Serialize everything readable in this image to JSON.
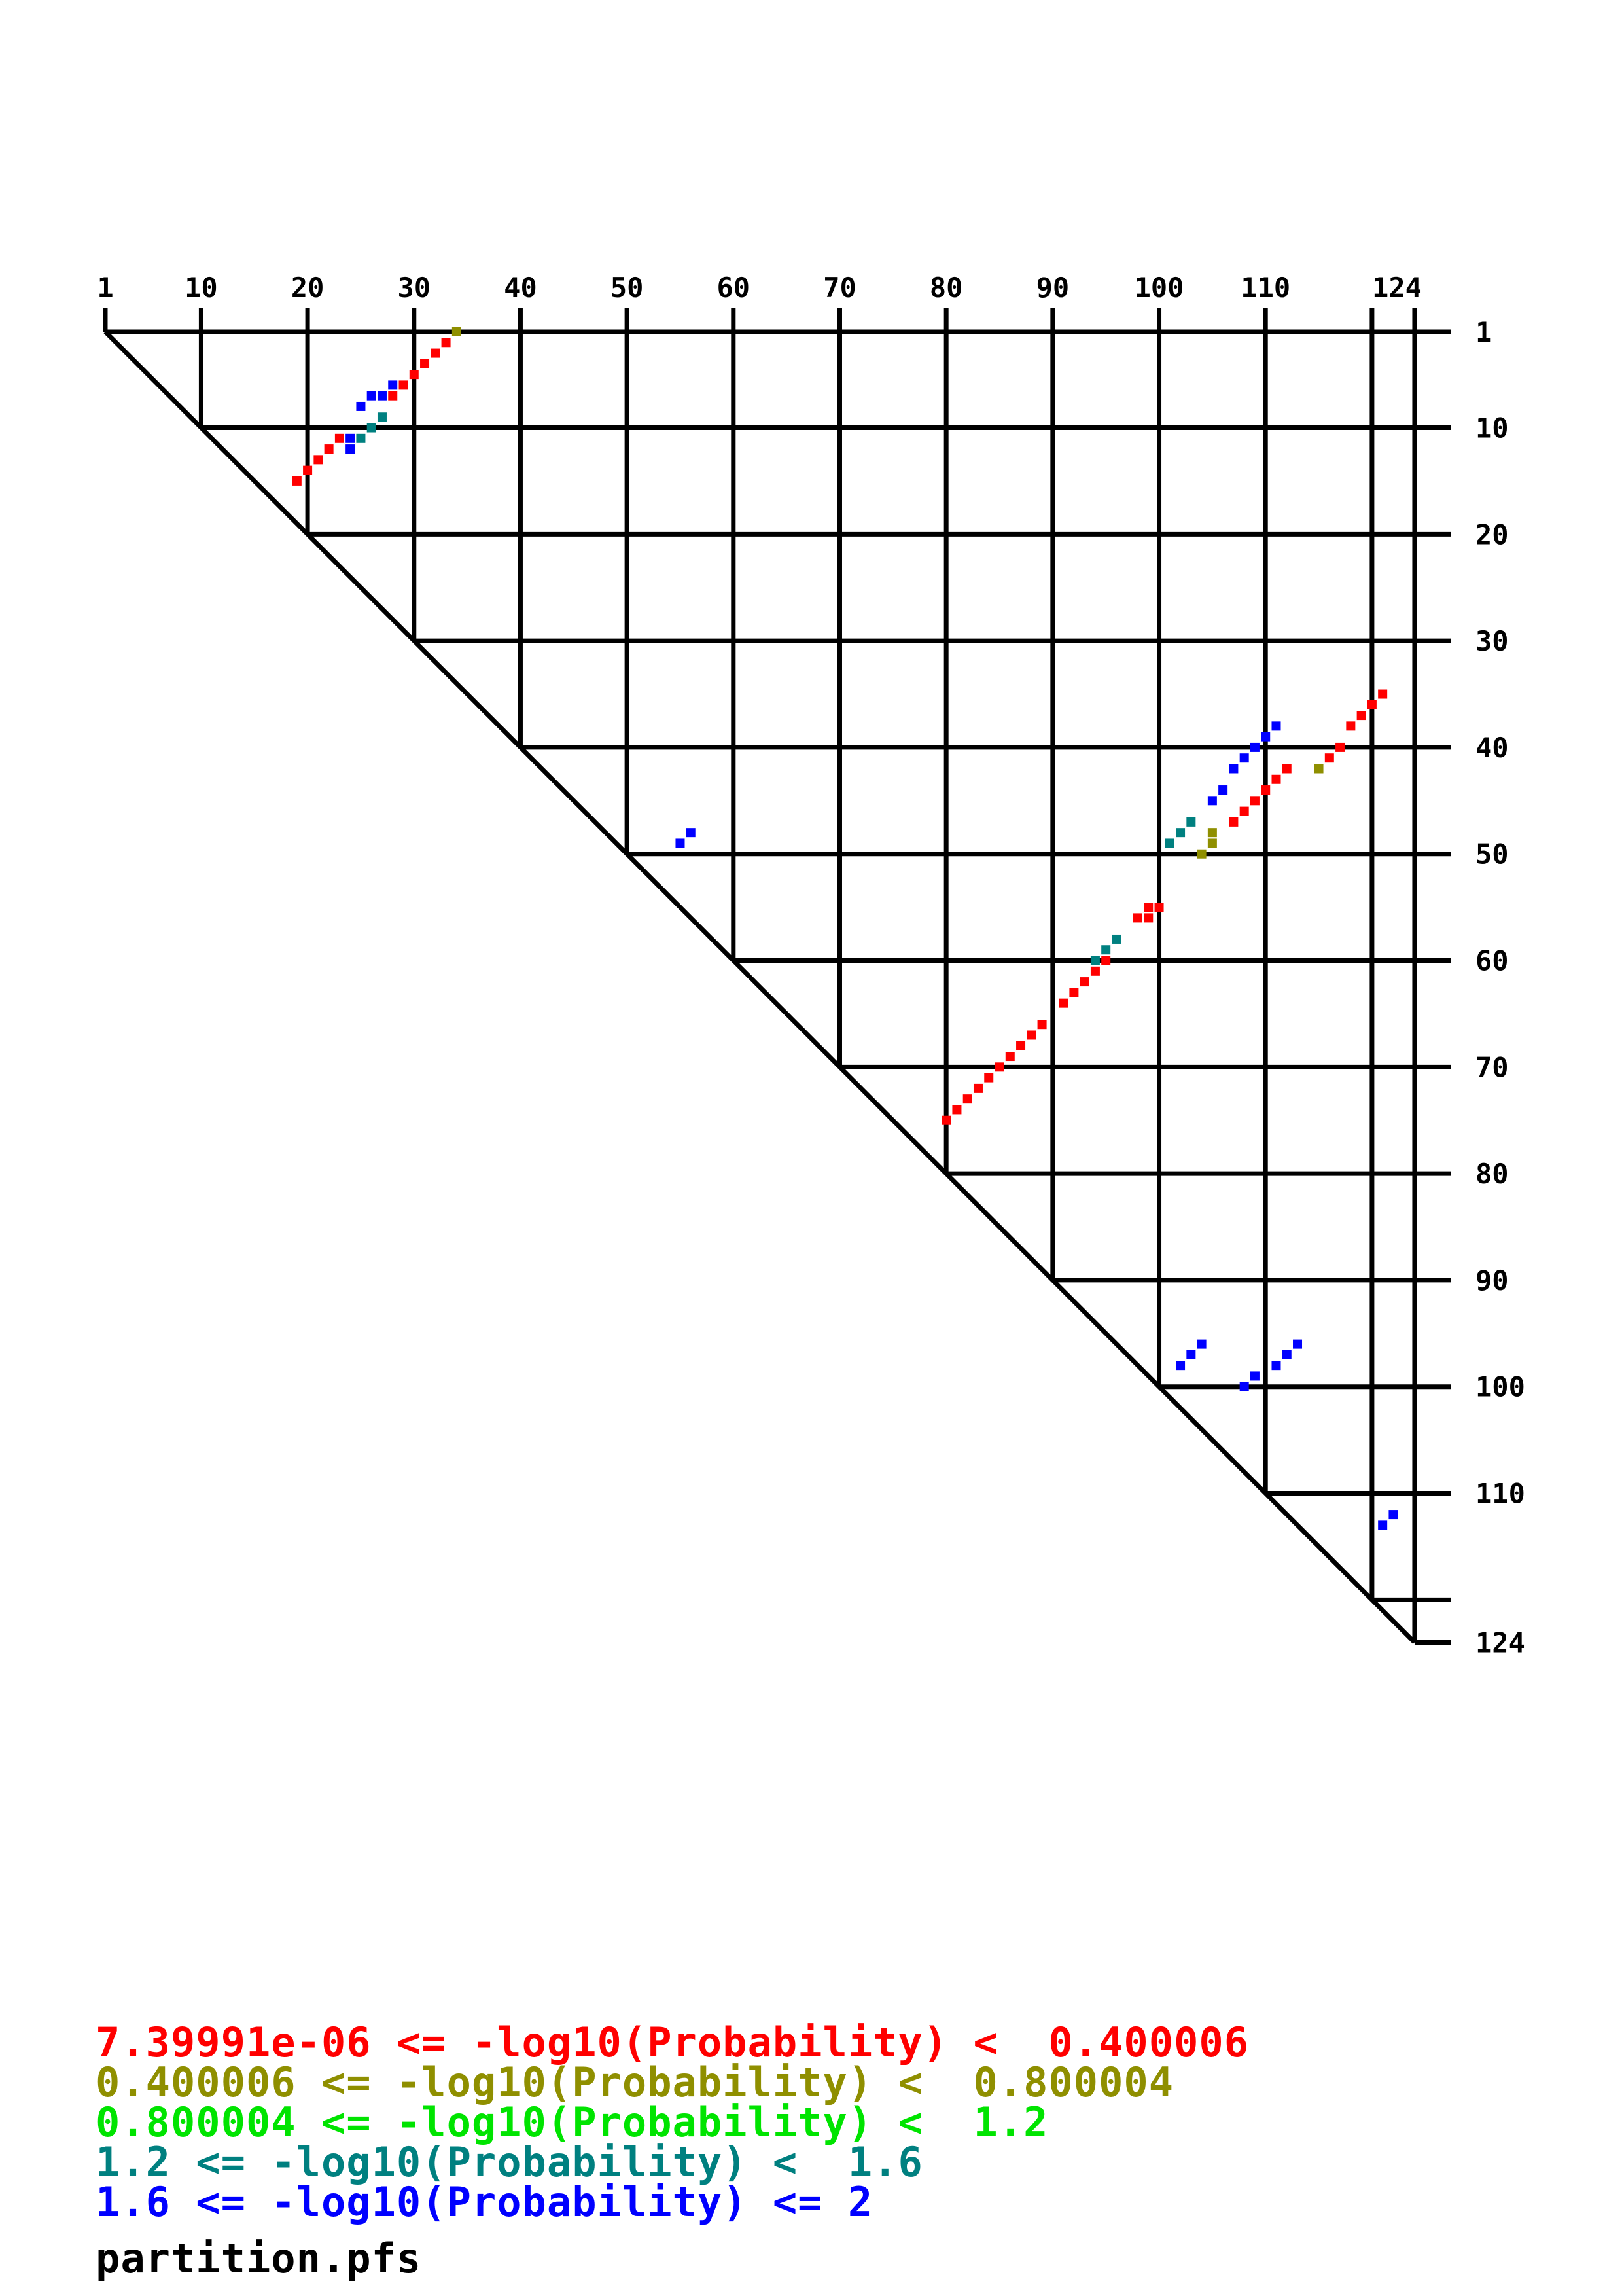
{
  "page": {
    "background": "#ffffff"
  },
  "plot": {
    "axis": {
      "range": [
        1,
        124
      ],
      "gridlines": [
        10,
        20,
        30,
        40,
        50,
        60,
        70,
        80,
        90,
        100,
        110,
        120
      ],
      "top_ticks": [
        1,
        10,
        20,
        30,
        40,
        50,
        60,
        70,
        80,
        90,
        100,
        110,
        120,
        124
      ],
      "top_labels": [
        {
          "v": 1,
          "t": "1"
        },
        {
          "v": 10,
          "t": "10"
        },
        {
          "v": 20,
          "t": "20"
        },
        {
          "v": 30,
          "t": "30"
        },
        {
          "v": 40,
          "t": "40"
        },
        {
          "v": 50,
          "t": "50"
        },
        {
          "v": 60,
          "t": "60"
        },
        {
          "v": 70,
          "t": "70"
        },
        {
          "v": 80,
          "t": "80"
        },
        {
          "v": 90,
          "t": "90"
        },
        {
          "v": 100,
          "t": "100"
        },
        {
          "v": 110,
          "t": "110"
        },
        {
          "v": 124,
          "t": "124"
        }
      ],
      "right_labels": [
        {
          "v": 1,
          "t": "1"
        },
        {
          "v": 10,
          "t": "10"
        },
        {
          "v": 20,
          "t": "20"
        },
        {
          "v": 30,
          "t": "30"
        },
        {
          "v": 40,
          "t": "40"
        },
        {
          "v": 50,
          "t": "50"
        },
        {
          "v": 60,
          "t": "60"
        },
        {
          "v": 70,
          "t": "70"
        },
        {
          "v": 80,
          "t": "80"
        },
        {
          "v": 90,
          "t": "90"
        },
        {
          "v": 100,
          "t": "100"
        },
        {
          "v": 110,
          "t": "110"
        },
        {
          "v": 124,
          "t": "124"
        }
      ]
    }
  },
  "chart_data": {
    "type": "scatter",
    "plot_kind": "rna-base-pair-probability-dot-plot",
    "title": "",
    "xlabel": "",
    "ylabel": "",
    "x_range": [
      1,
      124
    ],
    "y_range": [
      1,
      124
    ],
    "grid": true,
    "source_label": "partition.pfs",
    "series": [
      {
        "name": "7.39991e-06 <= -log10(Probability) < 0.400006",
        "color": "#ff0000",
        "points": [
          [
            33,
            2
          ],
          [
            32,
            3
          ],
          [
            31,
            4
          ],
          [
            30,
            5
          ],
          [
            29,
            6
          ],
          [
            28,
            7
          ],
          [
            23,
            11
          ],
          [
            22,
            12
          ],
          [
            21,
            13
          ],
          [
            20,
            14
          ],
          [
            19,
            15
          ],
          [
            121,
            35
          ],
          [
            120,
            36
          ],
          [
            119,
            37
          ],
          [
            118,
            38
          ],
          [
            117,
            40
          ],
          [
            116,
            41
          ],
          [
            112,
            42
          ],
          [
            111,
            43
          ],
          [
            110,
            44
          ],
          [
            109,
            45
          ],
          [
            108,
            46
          ],
          [
            107,
            47
          ],
          [
            100,
            55
          ],
          [
            99,
            55
          ],
          [
            99,
            56
          ],
          [
            98,
            56
          ],
          [
            95,
            60
          ],
          [
            94,
            61
          ],
          [
            93,
            62
          ],
          [
            92,
            63
          ],
          [
            91,
            64
          ],
          [
            89,
            66
          ],
          [
            88,
            67
          ],
          [
            87,
            68
          ],
          [
            86,
            69
          ],
          [
            85,
            70
          ],
          [
            84,
            71
          ],
          [
            83,
            72
          ],
          [
            82,
            73
          ],
          [
            81,
            74
          ],
          [
            80,
            75
          ]
        ]
      },
      {
        "name": "0.400006 <= -log10(Probability) < 0.800004",
        "color": "#8f8f00",
        "points": [
          [
            34,
            1
          ],
          [
            115,
            42
          ],
          [
            105,
            48
          ],
          [
            105,
            49
          ],
          [
            104,
            50
          ]
        ]
      },
      {
        "name": "0.800004 <= -log10(Probability) < 1.2",
        "color": "#00e400",
        "points": []
      },
      {
        "name": "1.2 <= -log10(Probability) < 1.6",
        "color": "#008080",
        "points": [
          [
            27,
            9
          ],
          [
            26,
            10
          ],
          [
            25,
            11
          ],
          [
            103,
            47
          ],
          [
            102,
            48
          ],
          [
            101,
            49
          ],
          [
            96,
            58
          ],
          [
            95,
            59
          ],
          [
            94,
            60
          ]
        ]
      },
      {
        "name": "1.6 <= -log10(Probability) <= 2",
        "color": "#0000ff",
        "points": [
          [
            28,
            6
          ],
          [
            27,
            7
          ],
          [
            26,
            7
          ],
          [
            25,
            8
          ],
          [
            24,
            11
          ],
          [
            24,
            12
          ],
          [
            56,
            48
          ],
          [
            55,
            49
          ],
          [
            111,
            38
          ],
          [
            110,
            39
          ],
          [
            109,
            40
          ],
          [
            108,
            41
          ],
          [
            107,
            42
          ],
          [
            106,
            44
          ],
          [
            105,
            45
          ],
          [
            104,
            96
          ],
          [
            103,
            97
          ],
          [
            102,
            98
          ],
          [
            109,
            99
          ],
          [
            108,
            100
          ],
          [
            113,
            96
          ],
          [
            112,
            97
          ],
          [
            111,
            98
          ],
          [
            122,
            112
          ],
          [
            121,
            113
          ]
        ]
      }
    ]
  },
  "legend": {
    "entries": [
      {
        "text": "7.39991e-06 <= -log10(Probability) <  0.400006",
        "color": "#ff0000"
      },
      {
        "text": "0.400006 <= -log10(Probability) <  0.800004",
        "color": "#8f8f00"
      },
      {
        "text": "0.800004 <= -log10(Probability) <  1.2",
        "color": "#00e400"
      },
      {
        "text": "1.2 <= -log10(Probability) <  1.6",
        "color": "#008080"
      },
      {
        "text": "1.6 <= -log10(Probability) <= 2",
        "color": "#0000ff"
      },
      {
        "text": "partition.pfs",
        "color": "#000000"
      }
    ]
  }
}
